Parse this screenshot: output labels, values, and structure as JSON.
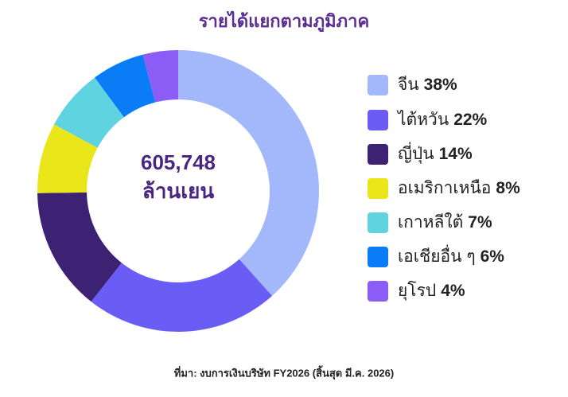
{
  "chart_data": {
    "type": "donut",
    "title": "รายได้แยกตามภูมิภาค",
    "center_text": [
      "605,748",
      "ล้านเยน"
    ],
    "categories": [
      "จีน",
      "ไต้หวัน",
      "ญี่ปุ่น",
      "อเมริกาเหนือ",
      "เกาหลีใต้",
      "เอเชียอื่น ๆ",
      "ยุโรป"
    ],
    "values": [
      38,
      22,
      14,
      8,
      7,
      6,
      4
    ],
    "value_labels": [
      "38%",
      "22%",
      "14%",
      "8%",
      "7%",
      "6%",
      "4%"
    ],
    "colors": [
      "#a3b8fb",
      "#6a5df5",
      "#3d2173",
      "#ebe61a",
      "#5fd3e0",
      "#0a7cf5",
      "#8c5cf7"
    ],
    "source": "ที่มา: งบการเงินบริษัท FY2026 (สิ้นสุด มี.ค. 2026)"
  }
}
